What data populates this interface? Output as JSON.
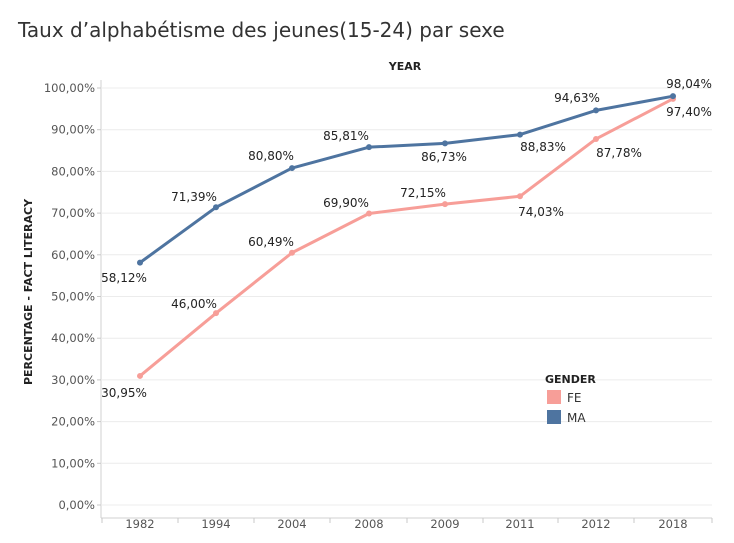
{
  "chart_data": {
    "type": "line",
    "title": "Taux d’alphabétisme des jeunes(15-24) par sexe",
    "xlabel": "YEAR",
    "ylabel": "PERCENTAGE - FACT LITERACY",
    "categories": [
      "1982",
      "1994",
      "2004",
      "2008",
      "2009",
      "2011",
      "2012",
      "2018"
    ],
    "ylim": [
      0,
      100
    ],
    "yticks": [
      "0,00%",
      "10,00%",
      "20,00%",
      "30,00%",
      "40,00%",
      "50,00%",
      "60,00%",
      "70,00%",
      "80,00%",
      "90,00%",
      "100,00%"
    ],
    "series": [
      {
        "name": "FE",
        "color": "#F79E98",
        "values": [
          30.95,
          46.0,
          60.49,
          69.9,
          72.15,
          74.03,
          87.78,
          97.4
        ],
        "labels": [
          "30,95%",
          "46,00%",
          "60,49%",
          "69,90%",
          "72,15%",
          "74,03%",
          "87,78%",
          "97,40%"
        ]
      },
      {
        "name": "MA",
        "color": "#4E74A0",
        "values": [
          58.12,
          71.39,
          80.8,
          85.81,
          86.73,
          88.83,
          94.63,
          98.04
        ],
        "labels": [
          "58,12%",
          "71,39%",
          "80,80%",
          "85,81%",
          "86,73%",
          "88,83%",
          "94,63%",
          "98,04%"
        ]
      }
    ],
    "legend": {
      "title": "GENDER",
      "position": "right"
    },
    "grid": true
  }
}
